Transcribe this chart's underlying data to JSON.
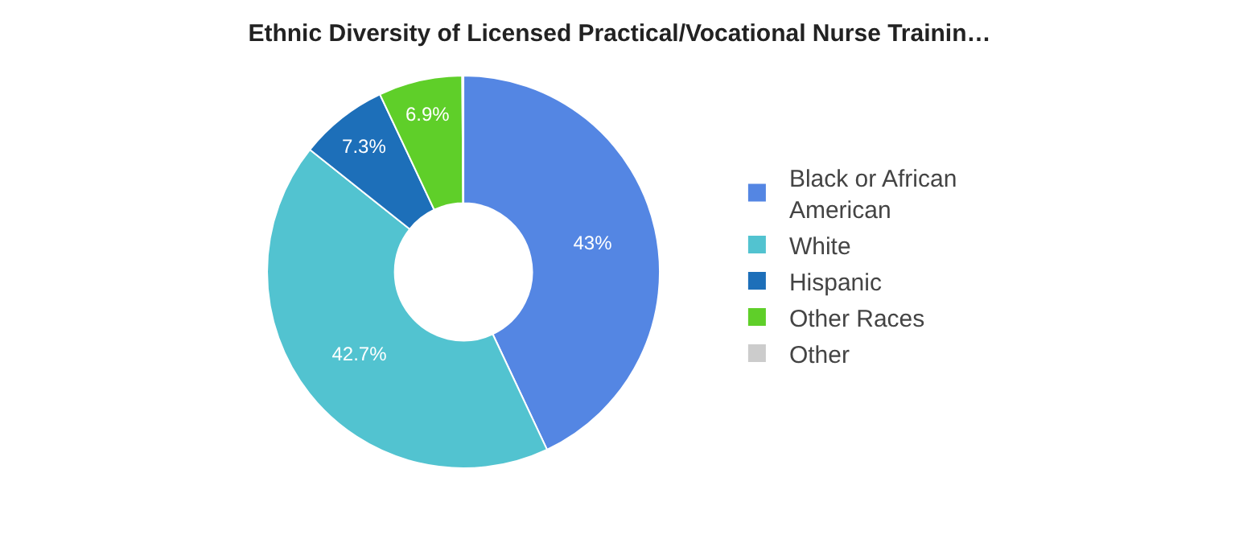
{
  "chart_data": {
    "type": "donut",
    "title": "Ethnic Diversity of Licensed Practical/Vocational Nurse Trainin…",
    "categories": [
      "Black or African American",
      "White",
      "Hispanic",
      "Other Races",
      "Other"
    ],
    "values": [
      43,
      42.7,
      7.3,
      6.9,
      0.1
    ],
    "colors": [
      "#5486e3",
      "#52c3d0",
      "#1d6fb9",
      "#5fcf29",
      "#cccccc"
    ],
    "value_labels": [
      "43%",
      "42.7%",
      "7.3%",
      "6.9%",
      null
    ],
    "legend": "right"
  }
}
